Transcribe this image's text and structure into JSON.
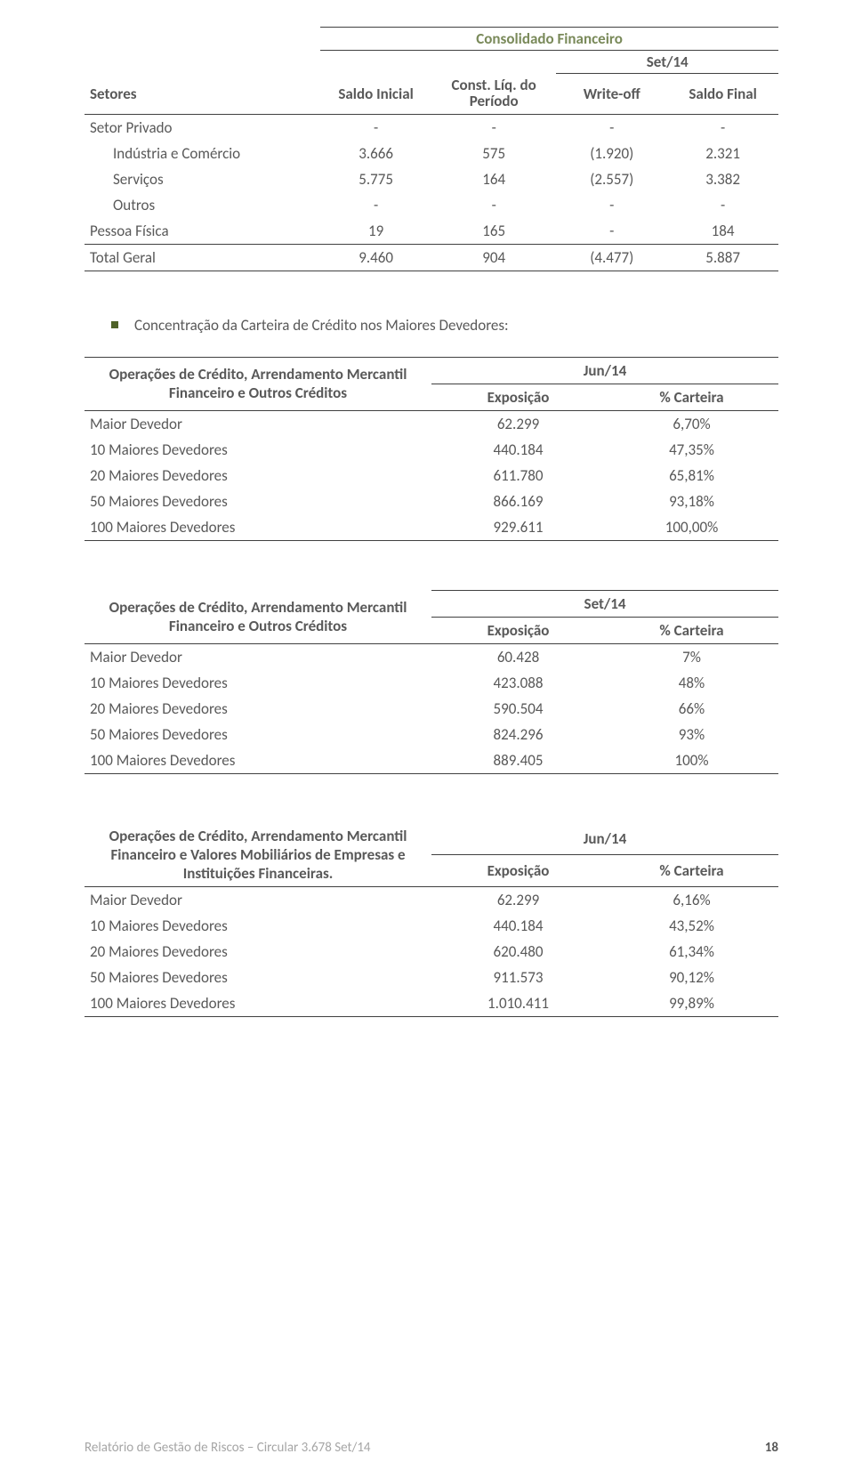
{
  "table1": {
    "super_header": "Consolidado Financeiro",
    "period": "Set/14",
    "headers": {
      "c0": "Setores",
      "c1": "Saldo Inicial",
      "c2": "Const. Líq. do Período",
      "c3": "Write-off",
      "c4": "Saldo Final"
    },
    "rows": [
      {
        "label": "Setor Privado",
        "c1": "-",
        "c2": "-",
        "c3": "-",
        "c4": "-",
        "indent": false
      },
      {
        "label": "Indústria e Comércio",
        "c1": "3.666",
        "c2": "575",
        "c3": "(1.920)",
        "c4": "2.321",
        "indent": true
      },
      {
        "label": "Serviços",
        "c1": "5.775",
        "c2": "164",
        "c3": "(2.557)",
        "c4": "3.382",
        "indent": true
      },
      {
        "label": "Outros",
        "c1": "-",
        "c2": "-",
        "c3": "-",
        "c4": "-",
        "indent": true
      },
      {
        "label": "Pessoa Física",
        "c1": "19",
        "c2": "165",
        "c3": "-",
        "c4": "184",
        "indent": false
      }
    ],
    "total": {
      "label": "Total Geral",
      "c1": "9.460",
      "c2": "904",
      "c3": "(4.477)",
      "c4": "5.887"
    }
  },
  "bullet_text": "Concentração da Carteira de Crédito nos Maiores Devedores:",
  "ct_headers": {
    "expo": "Exposição",
    "pct": "% Carteira"
  },
  "ct_row_labels": {
    "r0": "Maior Devedor",
    "r1": "10 Maiores Devedores",
    "r2": "20 Maiores Devedores",
    "r3": "50 Maiores Devedores",
    "r4": "100 Maiores Devedores"
  },
  "ct2": {
    "title": "Operações de Crédito, Arrendamento Mercantil Financeiro e Outros Créditos",
    "period": "Jun/14",
    "rows": [
      {
        "expo": "62.299",
        "pct": "6,70%"
      },
      {
        "expo": "440.184",
        "pct": "47,35%"
      },
      {
        "expo": "611.780",
        "pct": "65,81%"
      },
      {
        "expo": "866.169",
        "pct": "93,18%"
      },
      {
        "expo": "929.611",
        "pct": "100,00%"
      }
    ]
  },
  "ct3": {
    "title": "Operações de Crédito, Arrendamento Mercantil Financeiro e Outros Créditos",
    "period": "Set/14",
    "rows": [
      {
        "expo": "60.428",
        "pct": "7%"
      },
      {
        "expo": "423.088",
        "pct": "48%"
      },
      {
        "expo": "590.504",
        "pct": "66%"
      },
      {
        "expo": "824.296",
        "pct": "93%"
      },
      {
        "expo": "889.405",
        "pct": "100%"
      }
    ]
  },
  "ct4": {
    "title": "Operações de Crédito, Arrendamento Mercantil Financeiro e Valores Mobiliários de Empresas e Instituições Financeiras.",
    "period": "Jun/14",
    "rows": [
      {
        "expo": "62.299",
        "pct": "6,16%"
      },
      {
        "expo": "440.184",
        "pct": "43,52%"
      },
      {
        "expo": "620.480",
        "pct": "61,34%"
      },
      {
        "expo": "911.573",
        "pct": "90,12%"
      },
      {
        "expo": "1.010.411",
        "pct": "99,89%"
      }
    ]
  },
  "footer": {
    "text": "Relatório de Gestão de Riscos – Circular 3.678 Set/14",
    "page": "18"
  }
}
